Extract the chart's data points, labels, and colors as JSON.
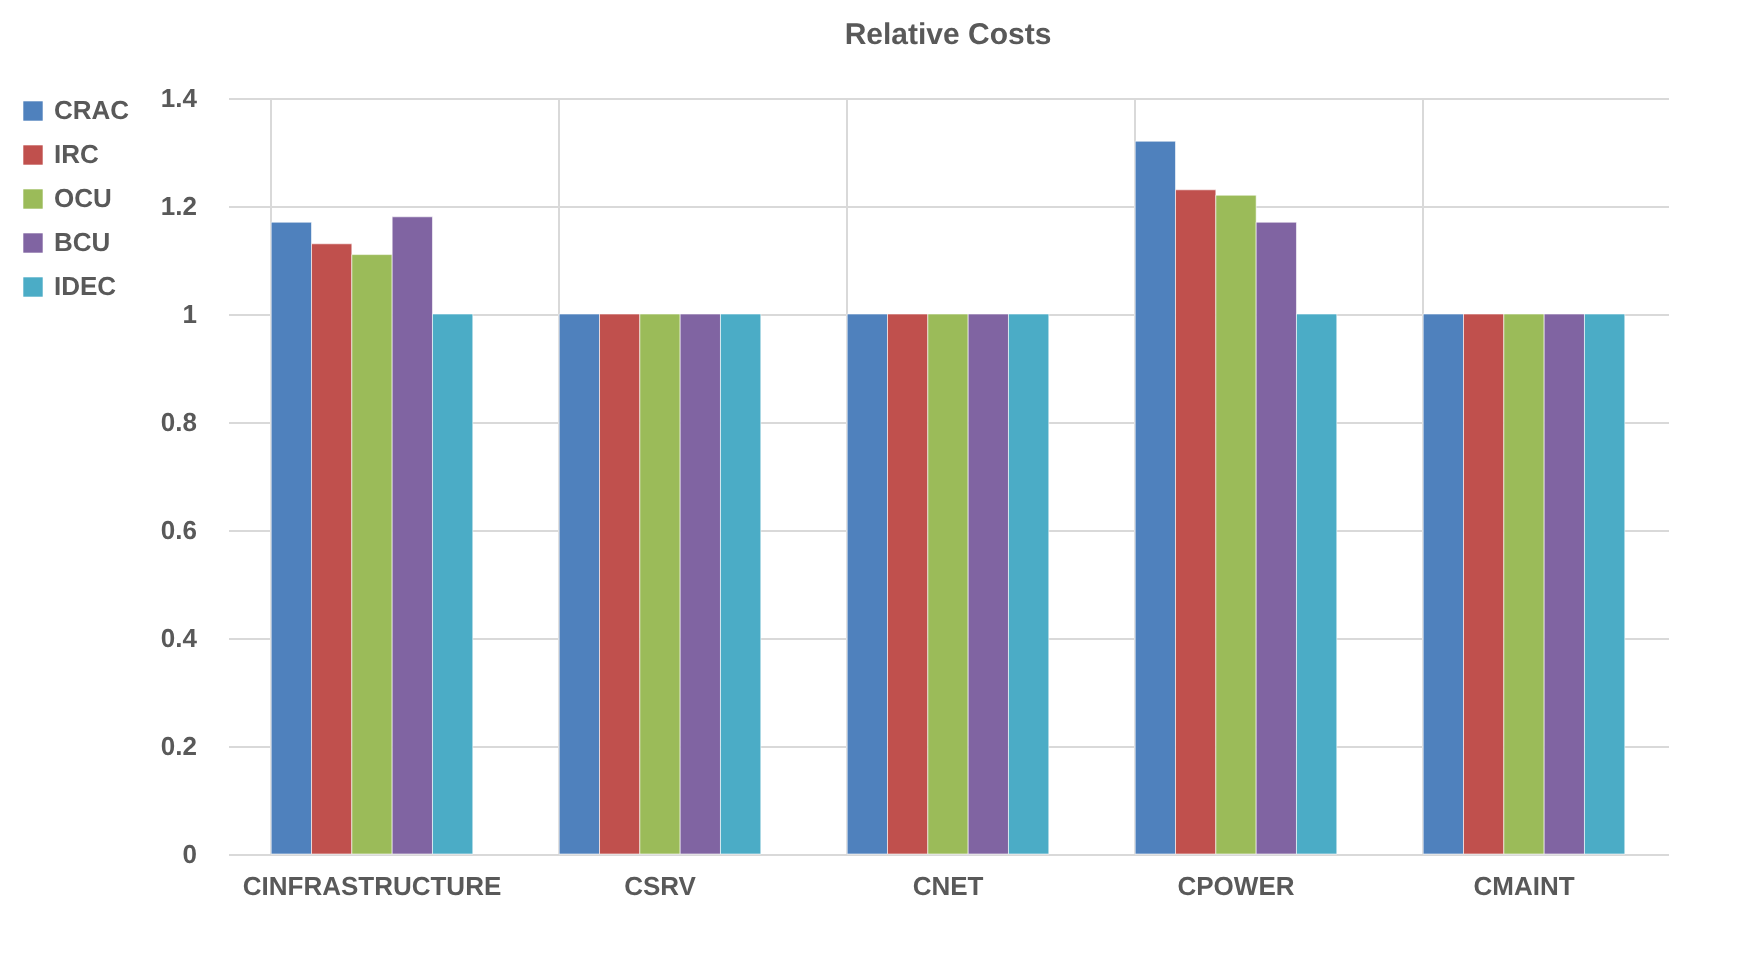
{
  "chart_data": {
    "type": "bar",
    "title": "Relative Costs",
    "categories": [
      "CINFRASTRUCTURE",
      "CSRV",
      "CNET",
      "CPOWER",
      "CMAINT"
    ],
    "series": [
      {
        "name": "CRAC",
        "color": "#4f81bd",
        "values": [
          1.17,
          1,
          1,
          1.32,
          1
        ]
      },
      {
        "name": "IRC",
        "color": "#c0504d",
        "values": [
          1.13,
          1,
          1,
          1.23,
          1
        ]
      },
      {
        "name": "OCU",
        "color": "#9bbb59",
        "values": [
          1.11,
          1,
          1,
          1.22,
          1
        ]
      },
      {
        "name": "BCU",
        "color": "#8064a2",
        "values": [
          1.18,
          1,
          1,
          1.17,
          1
        ]
      },
      {
        "name": "IDEC",
        "color": "#4bacc6",
        "values": [
          1,
          1,
          1,
          1,
          1
        ]
      }
    ],
    "ylim": [
      0,
      1.4
    ],
    "yticks": [
      0,
      0.2,
      0.4,
      0.6,
      0.8,
      1,
      1.2,
      1.4
    ],
    "grid": true,
    "legend": "left"
  }
}
